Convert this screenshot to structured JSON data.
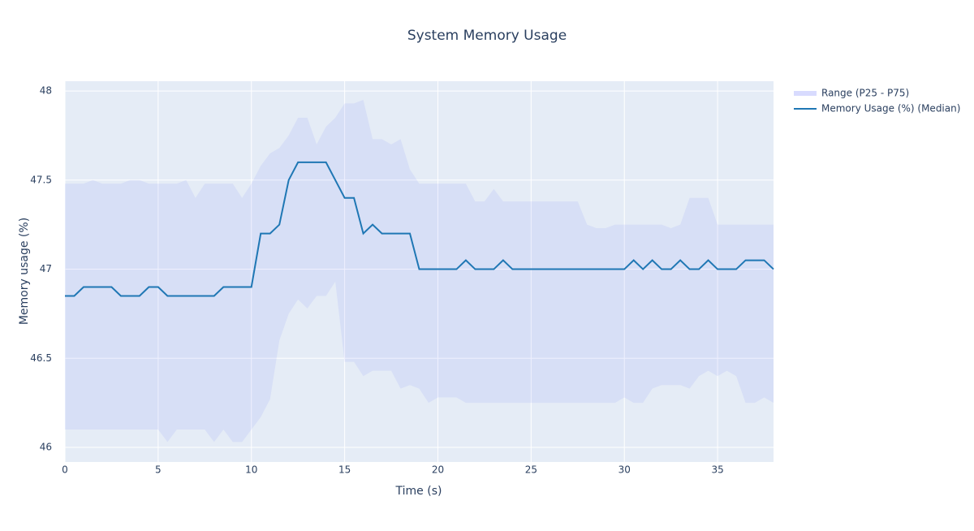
{
  "chart_data": {
    "type": "line",
    "title": "System Memory Usage",
    "x_label": "Time (s)",
    "y_label": "Memory usage (%)",
    "x": [
      0,
      0.5,
      1,
      1.5,
      2,
      2.5,
      3,
      3.5,
      4,
      4.5,
      5,
      5.5,
      6,
      6.5,
      7,
      7.5,
      8,
      8.5,
      9,
      9.5,
      10,
      10.5,
      11,
      11.5,
      12,
      12.5,
      13,
      13.5,
      14,
      14.5,
      15,
      15.5,
      16,
      16.5,
      17,
      17.5,
      18,
      18.5,
      19,
      19.5,
      20,
      20.5,
      21,
      21.5,
      22,
      22.5,
      23,
      23.5,
      24,
      24.5,
      25,
      25.5,
      26,
      26.5,
      27,
      27.5,
      28,
      28.5,
      29,
      29.5,
      30,
      30.5,
      31,
      31.5,
      32,
      32.5,
      33,
      33.5,
      34,
      34.5,
      35,
      35.5,
      36,
      36.5,
      37,
      37.5,
      38
    ],
    "series": [
      {
        "name": "Range (P25 - P75)",
        "color": "rgba(99,110,250,0.1)",
        "upper": [
          47.48,
          47.48,
          47.48,
          47.5,
          47.48,
          47.48,
          47.48,
          47.5,
          47.5,
          47.48,
          47.48,
          47.48,
          47.48,
          47.5,
          47.4,
          47.48,
          47.48,
          47.48,
          47.48,
          47.4,
          47.48,
          47.58,
          47.65,
          47.68,
          47.75,
          47.85,
          47.85,
          47.7,
          47.8,
          47.85,
          47.93,
          47.93,
          47.95,
          47.73,
          47.73,
          47.7,
          47.73,
          47.56,
          47.48,
          47.48,
          47.48,
          47.48,
          47.48,
          47.48,
          47.38,
          47.38,
          47.45,
          47.38,
          47.38,
          47.38,
          47.38,
          47.38,
          47.38,
          47.38,
          47.38,
          47.38,
          47.25,
          47.23,
          47.23,
          47.25,
          47.25,
          47.25,
          47.25,
          47.25,
          47.25,
          47.23,
          47.25,
          47.4,
          47.4,
          47.4,
          47.25,
          47.25,
          47.25,
          47.25,
          47.25,
          47.25,
          47.25
        ],
        "lower": [
          46.1,
          46.1,
          46.1,
          46.1,
          46.1,
          46.1,
          46.1,
          46.1,
          46.1,
          46.1,
          46.1,
          46.03,
          46.1,
          46.1,
          46.1,
          46.1,
          46.03,
          46.1,
          46.03,
          46.03,
          46.1,
          46.17,
          46.27,
          46.6,
          46.75,
          46.83,
          46.78,
          46.85,
          46.85,
          46.93,
          46.48,
          46.48,
          46.4,
          46.43,
          46.43,
          46.43,
          46.33,
          46.35,
          46.33,
          46.25,
          46.28,
          46.28,
          46.28,
          46.25,
          46.25,
          46.25,
          46.25,
          46.25,
          46.25,
          46.25,
          46.25,
          46.25,
          46.25,
          46.25,
          46.25,
          46.25,
          46.25,
          46.25,
          46.25,
          46.25,
          46.28,
          46.25,
          46.25,
          46.33,
          46.35,
          46.35,
          46.35,
          46.33,
          46.4,
          46.43,
          46.4,
          46.43,
          46.4,
          46.25,
          46.25,
          46.28,
          46.25
        ]
      },
      {
        "name": "Memory Usage (%) (Median)",
        "color": "#1f77b4",
        "values": [
          46.85,
          46.85,
          46.9,
          46.9,
          46.9,
          46.9,
          46.85,
          46.85,
          46.85,
          46.9,
          46.9,
          46.85,
          46.85,
          46.85,
          46.85,
          46.85,
          46.85,
          46.9,
          46.9,
          46.9,
          46.9,
          47.2,
          47.2,
          47.25,
          47.5,
          47.6,
          47.6,
          47.6,
          47.6,
          47.5,
          47.4,
          47.4,
          47.2,
          47.25,
          47.2,
          47.2,
          47.2,
          47.2,
          47,
          47,
          47,
          47,
          47,
          47.05,
          47,
          47,
          47,
          47.05,
          47,
          47,
          47,
          47,
          47,
          47,
          47,
          47,
          47,
          47,
          47,
          47,
          47,
          47.05,
          47,
          47.05,
          47,
          47,
          47.05,
          47,
          47,
          47.05,
          47,
          47,
          47,
          47.05,
          47.05,
          47.05,
          47
        ]
      }
    ],
    "xlim": [
      0,
      38
    ],
    "ylim": [
      45.918,
      48.055
    ],
    "xticks": [
      0,
      5,
      10,
      15,
      20,
      25,
      30,
      35
    ],
    "yticks": [
      46,
      46.5,
      47,
      47.5,
      48
    ],
    "grid": true,
    "legend": "right",
    "background": "#e5ecf6"
  }
}
